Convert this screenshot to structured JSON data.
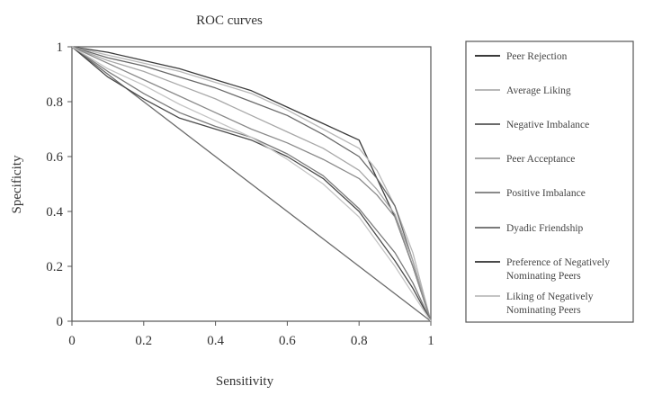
{
  "chart_data": {
    "type": "line",
    "title": "ROC curves",
    "xlabel": "Sensitivity",
    "ylabel": "Specificity",
    "xlim": [
      0,
      1
    ],
    "ylim": [
      0,
      1
    ],
    "xticks": [
      "0",
      "0.2",
      "0.4",
      "0.6",
      "0.8",
      "1"
    ],
    "yticks": [
      "0",
      "0.2",
      "0.4",
      "0.6",
      "0.8",
      "1"
    ],
    "grid": false,
    "legend_position": "right",
    "reference_line": {
      "x": [
        0,
        1
      ],
      "y": [
        1,
        0
      ],
      "color": "#6a6a6a"
    },
    "series": [
      {
        "name": "Peer Rejection",
        "color": "#3a3a3a",
        "x": [
          0,
          0.1,
          0.2,
          0.3,
          0.4,
          0.5,
          0.6,
          0.7,
          0.8,
          0.85,
          0.9,
          0.95,
          1
        ],
        "y": [
          1,
          0.98,
          0.95,
          0.92,
          0.88,
          0.84,
          0.78,
          0.72,
          0.66,
          0.52,
          0.38,
          0.2,
          0
        ]
      },
      {
        "name": "Average Liking",
        "color": "#b8b8b8",
        "x": [
          0,
          0.1,
          0.2,
          0.3,
          0.4,
          0.5,
          0.6,
          0.7,
          0.8,
          0.85,
          0.9,
          0.95,
          1
        ],
        "y": [
          1,
          0.97,
          0.94,
          0.91,
          0.87,
          0.83,
          0.77,
          0.7,
          0.63,
          0.55,
          0.42,
          0.25,
          0
        ]
      },
      {
        "name": "Negative Imbalance",
        "color": "#6a6a6a",
        "x": [
          0,
          0.1,
          0.2,
          0.3,
          0.4,
          0.5,
          0.6,
          0.7,
          0.8,
          0.85,
          0.9,
          0.95,
          1
        ],
        "y": [
          1,
          0.96,
          0.93,
          0.89,
          0.85,
          0.8,
          0.75,
          0.68,
          0.6,
          0.52,
          0.42,
          0.22,
          0
        ]
      },
      {
        "name": "Peer Acceptance",
        "color": "#a8a8a8",
        "x": [
          0,
          0.1,
          0.2,
          0.3,
          0.4,
          0.5,
          0.6,
          0.7,
          0.8,
          0.85,
          0.9,
          0.95,
          1
        ],
        "y": [
          1,
          0.95,
          0.91,
          0.86,
          0.81,
          0.75,
          0.69,
          0.63,
          0.55,
          0.48,
          0.39,
          0.22,
          0
        ]
      },
      {
        "name": "Positive Imbalance",
        "color": "#8a8a8a",
        "x": [
          0,
          0.1,
          0.2,
          0.3,
          0.4,
          0.5,
          0.6,
          0.7,
          0.8,
          0.85,
          0.9,
          0.95,
          1
        ],
        "y": [
          1,
          0.94,
          0.88,
          0.82,
          0.76,
          0.7,
          0.65,
          0.59,
          0.52,
          0.46,
          0.38,
          0.2,
          0
        ]
      },
      {
        "name": "Dyadic Friendship",
        "color": "#7a7a7a",
        "x": [
          0,
          0.1,
          0.2,
          0.3,
          0.4,
          0.5,
          0.6,
          0.7,
          0.8,
          0.85,
          0.9,
          0.95,
          1
        ],
        "y": [
          1,
          0.91,
          0.83,
          0.76,
          0.71,
          0.67,
          0.61,
          0.53,
          0.41,
          0.33,
          0.25,
          0.14,
          0
        ]
      },
      {
        "name": "Preference of Negatively Nominating Peers",
        "color": "#4a4a4a",
        "x": [
          0,
          0.1,
          0.2,
          0.3,
          0.4,
          0.5,
          0.6,
          0.7,
          0.8,
          0.85,
          0.9,
          0.95,
          1
        ],
        "y": [
          1,
          0.89,
          0.81,
          0.74,
          0.7,
          0.66,
          0.6,
          0.52,
          0.4,
          0.31,
          0.22,
          0.12,
          0
        ]
      },
      {
        "name": "Liking of Negatively Nominating Peers",
        "color": "#c4c4c4",
        "x": [
          0,
          0.1,
          0.2,
          0.3,
          0.4,
          0.5,
          0.6,
          0.7,
          0.8,
          0.85,
          0.9,
          0.95,
          1
        ],
        "y": [
          1,
          0.92,
          0.86,
          0.79,
          0.73,
          0.67,
          0.59,
          0.5,
          0.38,
          0.29,
          0.2,
          0.1,
          0
        ]
      }
    ]
  },
  "legend_lines": [
    [
      "Peer Rejection"
    ],
    [
      "Average Liking"
    ],
    [
      "Negative Imbalance"
    ],
    [
      "Peer Acceptance"
    ],
    [
      "Positive Imbalance"
    ],
    [
      "Dyadic Friendship"
    ],
    [
      "Preference of Negatively",
      "Nominating Peers"
    ],
    [
      "Liking of Negatively",
      "Nominating Peers"
    ]
  ]
}
